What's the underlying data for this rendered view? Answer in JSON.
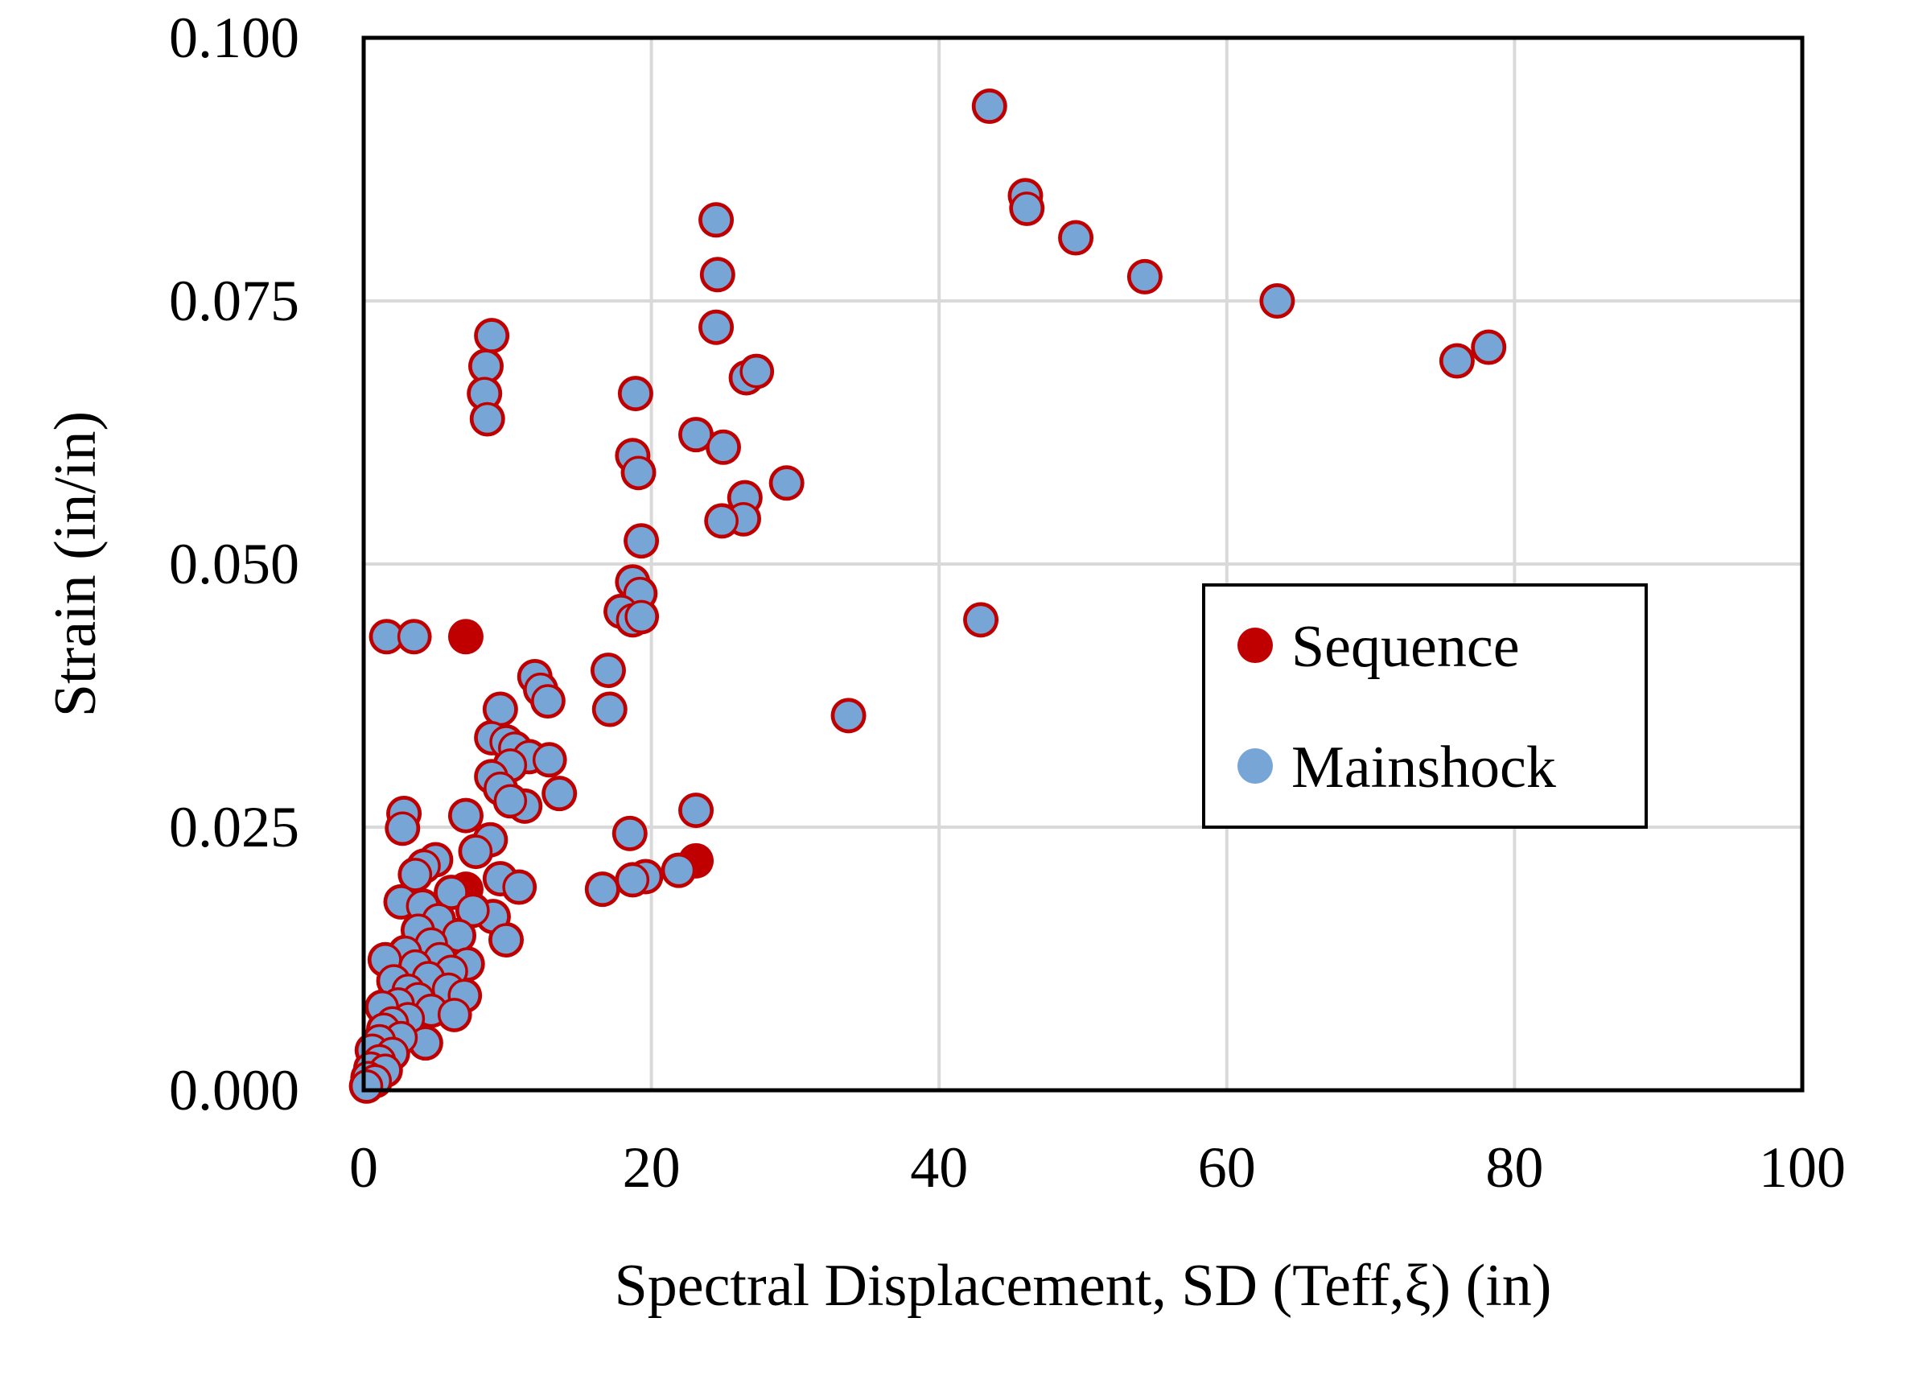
{
  "chart_data": {
    "type": "scatter",
    "title": "",
    "xlabel": "Spectral Displacement, SD (Teff,ξ) (in)",
    "ylabel": "Strain (in/in)",
    "xlim": [
      0,
      100
    ],
    "ylim": [
      0,
      0.1
    ],
    "x_ticks": [
      0,
      20,
      40,
      60,
      80,
      100
    ],
    "x_tick_labels": [
      "0",
      "20",
      "40",
      "60",
      "80",
      "100"
    ],
    "y_ticks": [
      0,
      0.025,
      0.05,
      0.075,
      0.1
    ],
    "y_tick_labels": [
      "0.000",
      "0.025",
      "0.050",
      "0.075",
      "0.100"
    ],
    "grid": true,
    "legend_position": "right-middle",
    "series": [
      {
        "name": "Sequence",
        "color": "#c00000",
        "points": [
          [
            43.5,
            0.0935
          ],
          [
            46,
            0.085
          ],
          [
            46.1,
            0.0838
          ],
          [
            49.5,
            0.081
          ],
          [
            54.3,
            0.0773
          ],
          [
            63.5,
            0.075
          ],
          [
            76,
            0.0693
          ],
          [
            78.2,
            0.0706
          ],
          [
            24.5,
            0.0827
          ],
          [
            24.6,
            0.0775
          ],
          [
            24.5,
            0.0725
          ],
          [
            26.6,
            0.0677
          ],
          [
            27.3,
            0.0683
          ],
          [
            8.9,
            0.0717
          ],
          [
            8.5,
            0.0688
          ],
          [
            8.4,
            0.0662
          ],
          [
            8.6,
            0.0638
          ],
          [
            18.9,
            0.0662
          ],
          [
            23.1,
            0.0623
          ],
          [
            25,
            0.0611
          ],
          [
            18.7,
            0.0603
          ],
          [
            19.1,
            0.0587
          ],
          [
            29.4,
            0.0577
          ],
          [
            26.5,
            0.0563
          ],
          [
            26.4,
            0.0543
          ],
          [
            24.9,
            0.0541
          ],
          [
            19.3,
            0.0522
          ],
          [
            18.7,
            0.0483
          ],
          [
            19.2,
            0.0472
          ],
          [
            17.9,
            0.0455
          ],
          [
            18.7,
            0.0447
          ],
          [
            19.3,
            0.045
          ],
          [
            42.9,
            0.0447
          ],
          [
            1.6,
            0.0431
          ],
          [
            3.5,
            0.0431
          ],
          [
            7.1,
            0.0431
          ],
          [
            11.9,
            0.0393
          ],
          [
            12.3,
            0.0381
          ],
          [
            12.8,
            0.037
          ],
          [
            17,
            0.0399
          ],
          [
            17.1,
            0.0362
          ],
          [
            33.7,
            0.0356
          ],
          [
            9.5,
            0.0362
          ],
          [
            8.9,
            0.0335
          ],
          [
            9.9,
            0.0331
          ],
          [
            10.5,
            0.0325
          ],
          [
            11.5,
            0.0317
          ],
          [
            12.9,
            0.0314
          ],
          [
            10.2,
            0.0309
          ],
          [
            8.9,
            0.0298
          ],
          [
            9.5,
            0.0287
          ],
          [
            13.6,
            0.0282
          ],
          [
            11.2,
            0.027
          ],
          [
            10.2,
            0.0275
          ],
          [
            2.8,
            0.0263
          ],
          [
            2.7,
            0.0249
          ],
          [
            7.1,
            0.0261
          ],
          [
            23.1,
            0.0266
          ],
          [
            18.5,
            0.0244
          ],
          [
            8.8,
            0.0238
          ],
          [
            7.8,
            0.0227
          ],
          [
            23.1,
            0.0218
          ],
          [
            21.9,
            0.0209
          ],
          [
            19.6,
            0.0203
          ],
          [
            18.7,
            0.02
          ],
          [
            16.6,
            0.0191
          ],
          [
            5,
            0.0219
          ],
          [
            4.2,
            0.0213
          ],
          [
            3.6,
            0.0205
          ],
          [
            9.5,
            0.0201
          ],
          [
            10.8,
            0.0193
          ],
          [
            7.1,
            0.0191
          ],
          [
            6.1,
            0.0188
          ],
          [
            2.6,
            0.0179
          ],
          [
            4.1,
            0.0175
          ],
          [
            9,
            0.0165
          ],
          [
            7.6,
            0.0171
          ],
          [
            5.2,
            0.0162
          ],
          [
            3.8,
            0.0152
          ],
          [
            6.6,
            0.0147
          ],
          [
            9.9,
            0.0143
          ],
          [
            4.7,
            0.0139
          ],
          [
            2.9,
            0.0131
          ],
          [
            5.3,
            0.0125
          ],
          [
            1.5,
            0.0124
          ],
          [
            3.6,
            0.0118
          ],
          [
            7.2,
            0.012
          ],
          [
            6.1,
            0.0113
          ],
          [
            4.5,
            0.0107
          ],
          [
            2.1,
            0.0104
          ],
          [
            3.1,
            0.0095
          ],
          [
            5.9,
            0.0096
          ],
          [
            7,
            0.009
          ],
          [
            3.8,
            0.0087
          ],
          [
            2.4,
            0.0082
          ],
          [
            1.3,
            0.0079
          ],
          [
            4.7,
            0.0076
          ],
          [
            6.3,
            0.0072
          ],
          [
            3.1,
            0.0068
          ],
          [
            2,
            0.0064
          ],
          [
            1.4,
            0.0058
          ],
          [
            4.3,
            0.0045
          ],
          [
            2.6,
            0.005
          ],
          [
            1.1,
            0.0047
          ],
          [
            0.6,
            0.0038
          ],
          [
            2,
            0.0035
          ],
          [
            1.1,
            0.0028
          ],
          [
            0.5,
            0.0021
          ],
          [
            1.5,
            0.0019
          ],
          [
            0.3,
            0.0012
          ],
          [
            0.8,
            0.0009
          ],
          [
            0.2,
            0.0004
          ]
        ]
      },
      {
        "name": "Mainshock",
        "color": "#77a5d6",
        "points": [
          [
            43.5,
            0.0935
          ],
          [
            46,
            0.085
          ],
          [
            46.1,
            0.0838
          ],
          [
            49.5,
            0.081
          ],
          [
            54.3,
            0.0773
          ],
          [
            63.5,
            0.075
          ],
          [
            76,
            0.0693
          ],
          [
            78.2,
            0.0706
          ],
          [
            24.5,
            0.0827
          ],
          [
            24.6,
            0.0775
          ],
          [
            24.5,
            0.0725
          ],
          [
            26.6,
            0.0677
          ],
          [
            27.3,
            0.0683
          ],
          [
            8.9,
            0.0717
          ],
          [
            8.5,
            0.0688
          ],
          [
            8.4,
            0.0662
          ],
          [
            8.6,
            0.0638
          ],
          [
            18.9,
            0.0662
          ],
          [
            23.1,
            0.0623
          ],
          [
            25,
            0.0611
          ],
          [
            18.7,
            0.0603
          ],
          [
            19.1,
            0.0587
          ],
          [
            29.4,
            0.0577
          ],
          [
            26.5,
            0.0563
          ],
          [
            26.4,
            0.0543
          ],
          [
            24.9,
            0.0541
          ],
          [
            19.3,
            0.0522
          ],
          [
            18.7,
            0.0483
          ],
          [
            19.2,
            0.0472
          ],
          [
            17.9,
            0.0455
          ],
          [
            18.7,
            0.0447
          ],
          [
            19.3,
            0.045
          ],
          [
            42.9,
            0.0447
          ],
          [
            1.6,
            0.0431
          ],
          [
            3.5,
            0.0431
          ],
          [
            11.9,
            0.0393
          ],
          [
            12.3,
            0.0381
          ],
          [
            12.8,
            0.037
          ],
          [
            17,
            0.0399
          ],
          [
            17.1,
            0.0362
          ],
          [
            33.7,
            0.0356
          ],
          [
            9.5,
            0.0362
          ],
          [
            8.9,
            0.0335
          ],
          [
            9.9,
            0.0331
          ],
          [
            10.5,
            0.0325
          ],
          [
            11.5,
            0.0317
          ],
          [
            12.9,
            0.0314
          ],
          [
            10.2,
            0.0309
          ],
          [
            8.9,
            0.0298
          ],
          [
            9.5,
            0.0287
          ],
          [
            13.6,
            0.0282
          ],
          [
            11.2,
            0.027
          ],
          [
            10.2,
            0.0275
          ],
          [
            2.8,
            0.0263
          ],
          [
            2.7,
            0.0249
          ],
          [
            7.1,
            0.0261
          ],
          [
            23.1,
            0.0266
          ],
          [
            18.5,
            0.0244
          ],
          [
            8.8,
            0.0238
          ],
          [
            7.8,
            0.0227
          ],
          [
            21.9,
            0.0209
          ],
          [
            19.6,
            0.0203
          ],
          [
            18.7,
            0.02
          ],
          [
            16.6,
            0.0191
          ],
          [
            5,
            0.0219
          ],
          [
            4.2,
            0.0213
          ],
          [
            3.6,
            0.0205
          ],
          [
            9.5,
            0.0201
          ],
          [
            10.8,
            0.0193
          ],
          [
            6.1,
            0.0188
          ],
          [
            2.6,
            0.0179
          ],
          [
            4.1,
            0.0175
          ],
          [
            9,
            0.0165
          ],
          [
            7.6,
            0.0171
          ],
          [
            5.2,
            0.0162
          ],
          [
            3.8,
            0.0152
          ],
          [
            6.6,
            0.0147
          ],
          [
            9.9,
            0.0143
          ],
          [
            4.7,
            0.0139
          ],
          [
            2.9,
            0.0131
          ],
          [
            5.3,
            0.0125
          ],
          [
            1.5,
            0.0124
          ],
          [
            3.6,
            0.0118
          ],
          [
            7.2,
            0.012
          ],
          [
            6.1,
            0.0113
          ],
          [
            4.5,
            0.0107
          ],
          [
            2.1,
            0.0104
          ],
          [
            3.1,
            0.0095
          ],
          [
            5.9,
            0.0096
          ],
          [
            7,
            0.009
          ],
          [
            3.8,
            0.0087
          ],
          [
            2.4,
            0.0082
          ],
          [
            1.3,
            0.0079
          ],
          [
            4.7,
            0.0076
          ],
          [
            6.3,
            0.0072
          ],
          [
            3.1,
            0.0068
          ],
          [
            2,
            0.0064
          ],
          [
            1.4,
            0.0058
          ],
          [
            4.3,
            0.0045
          ],
          [
            2.6,
            0.005
          ],
          [
            1.1,
            0.0047
          ],
          [
            0.6,
            0.0038
          ],
          [
            2,
            0.0035
          ],
          [
            1.1,
            0.0028
          ],
          [
            0.5,
            0.0021
          ],
          [
            1.5,
            0.0019
          ],
          [
            0.3,
            0.0012
          ],
          [
            0.8,
            0.0009
          ],
          [
            0.2,
            0.0004
          ]
        ]
      }
    ]
  }
}
